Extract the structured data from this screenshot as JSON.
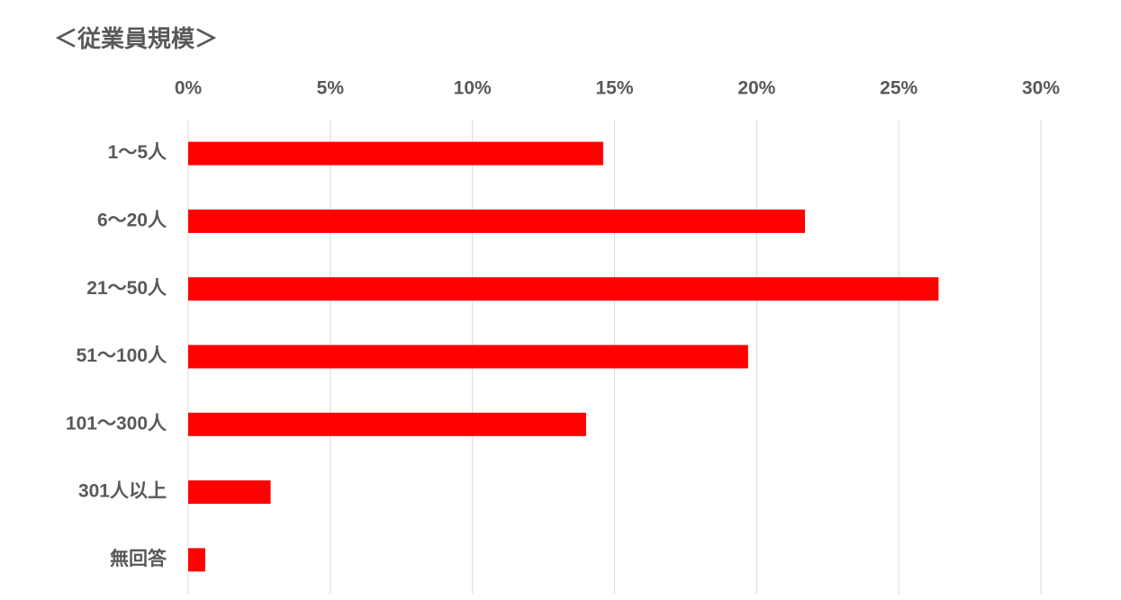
{
  "chart_data": {
    "type": "bar",
    "orientation": "horizontal",
    "title": "＜従業員規模＞",
    "categories": [
      "1～5人",
      "6～20人",
      "21～50人",
      "51～100人",
      "101～300人",
      "301人以上",
      "無回答"
    ],
    "values": [
      14.6,
      21.7,
      26.4,
      19.7,
      14.0,
      2.9,
      0.6
    ],
    "color": "#ff0000",
    "xlim": [
      0,
      30
    ],
    "xticks": [
      {
        "value": 0,
        "label": "0%"
      },
      {
        "value": 5,
        "label": "5%"
      },
      {
        "value": 10,
        "label": "10%"
      },
      {
        "value": 15,
        "label": "15%"
      },
      {
        "value": 20,
        "label": "20%"
      },
      {
        "value": 25,
        "label": "25%"
      },
      {
        "value": 30,
        "label": "30%"
      }
    ],
    "grid": true
  }
}
